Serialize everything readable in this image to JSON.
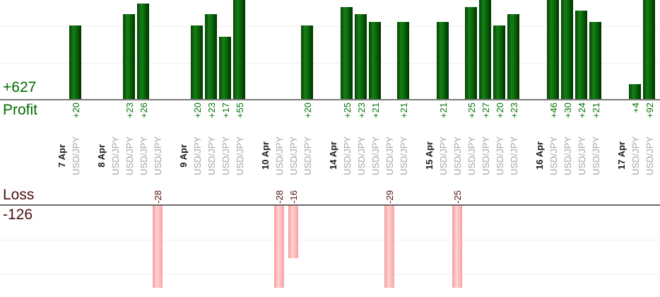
{
  "chart_data": {
    "type": "bar",
    "description": "Daily trade profit/loss bar chart, profits above upper axis, losses below lower axis",
    "profit_axis": {
      "axis_label": "Profit",
      "total_label": "+627",
      "gridline_unit": 10
    },
    "loss_axis": {
      "axis_label": "Loss",
      "total_label": "-126",
      "gridline_unit": 10
    },
    "x_axis": {
      "trade_instrument_label": "USD/JPY",
      "label_orientation": "vertical"
    },
    "groups": [
      {
        "date": "7 Apr",
        "trades": [
          {
            "pair": "USD/JPY",
            "value": 20
          }
        ]
      },
      {
        "date": "8 Apr",
        "trades": [
          {
            "pair": "USD/JPY",
            "value": 0
          },
          {
            "pair": "USD/JPY",
            "value": 23
          },
          {
            "pair": "USD/JPY",
            "value": 26
          },
          {
            "pair": "USD/JPY",
            "value": -28
          }
        ]
      },
      {
        "date": "9 Apr",
        "trades": [
          {
            "pair": "USD/JPY",
            "value": 20
          },
          {
            "pair": "USD/JPY",
            "value": 23
          },
          {
            "pair": "USD/JPY",
            "value": 17
          },
          {
            "pair": "USD/JPY",
            "value": 55
          }
        ]
      },
      {
        "date": "10 Apr",
        "trades": [
          {
            "pair": "USD/JPY",
            "value": -28
          },
          {
            "pair": "USD/JPY",
            "value": -16
          },
          {
            "pair": "USD/JPY",
            "value": 20
          }
        ]
      },
      {
        "date": "14 Apr",
        "trades": [
          {
            "pair": "USD/JPY",
            "value": 25
          },
          {
            "pair": "USD/JPY",
            "value": 23
          },
          {
            "pair": "USD/JPY",
            "value": 21
          },
          {
            "pair": "USD/JPY",
            "value": -29
          },
          {
            "pair": "USD/JPY",
            "value": 21
          }
        ]
      },
      {
        "date": "15 Apr",
        "trades": [
          {
            "pair": "USD/JPY",
            "value": 21
          },
          {
            "pair": "USD/JPY",
            "value": -25
          },
          {
            "pair": "USD/JPY",
            "value": 25
          },
          {
            "pair": "USD/JPY",
            "value": 27
          },
          {
            "pair": "USD/JPY",
            "value": 20
          },
          {
            "pair": "USD/JPY",
            "value": 23
          }
        ]
      },
      {
        "date": "16 Apr",
        "trades": [
          {
            "pair": "USD/JPY",
            "value": 46
          },
          {
            "pair": "USD/JPY",
            "value": 30
          },
          {
            "pair": "USD/JPY",
            "value": 24
          },
          {
            "pair": "USD/JPY",
            "value": 21
          }
        ]
      },
      {
        "date": "17 Apr",
        "trades": [
          {
            "pair": "USD/JPY",
            "value": 4
          },
          {
            "pair": "USD/JPY",
            "value": 92
          }
        ]
      }
    ],
    "colors": {
      "profit_bar": "#0f7a0f",
      "loss_bar": "#ffb3b3",
      "profit_text": "#007300",
      "loss_text": "#541111",
      "profit_total_text": "#006b00",
      "loss_total_text": "#4c0b0b",
      "date_text": "#1c1c1c",
      "pair_text": "#a3a3a3",
      "axis_line": "#7b7b7b",
      "gridline": "#efefef"
    }
  }
}
